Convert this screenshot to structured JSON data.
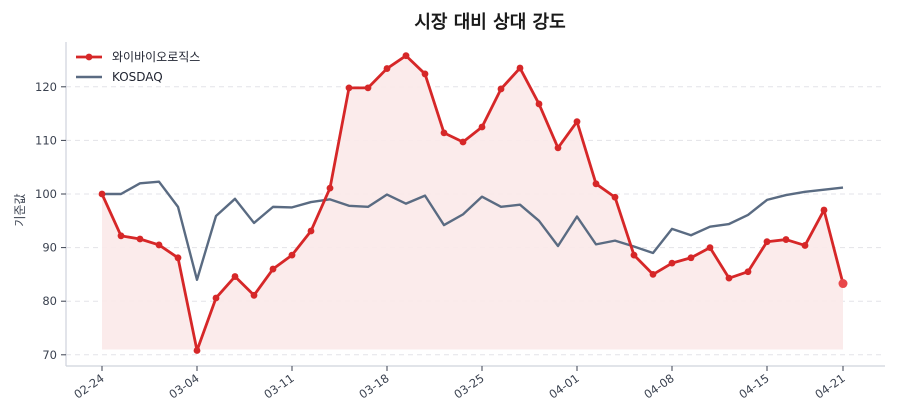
{
  "chart_data": {
    "type": "line",
    "title": "시장 대비 상대 강도",
    "xlabel": "",
    "ylabel": "기준값",
    "ylim": [
      68.5,
      128.5
    ],
    "yticks": [
      70,
      80,
      90,
      100,
      110,
      120
    ],
    "xtick_labels": [
      {
        "index": 0,
        "label": "02-24"
      },
      {
        "index": 5,
        "label": "03-04"
      },
      {
        "index": 10,
        "label": "03-11"
      },
      {
        "index": 15,
        "label": "03-18"
      },
      {
        "index": 20,
        "label": "03-25"
      },
      {
        "index": 25,
        "label": "04-01"
      },
      {
        "index": 30,
        "label": "04-08"
      },
      {
        "index": 35,
        "label": "04-15"
      },
      {
        "index": 39,
        "label": "04-21"
      }
    ],
    "grid": "horizontal dashed",
    "legend_position": "upper left",
    "baseline_fill": 71,
    "series": [
      {
        "name": "와이바이오로직스",
        "color": "#d62728",
        "marker": "circle",
        "fill": "#fbe9e9",
        "values": [
          100.0,
          92.2,
          91.6,
          90.5,
          88.1,
          70.8,
          80.6,
          84.6,
          81.1,
          86.0,
          88.6,
          93.1,
          101.1,
          119.8,
          119.8,
          123.4,
          125.8,
          122.4,
          111.4,
          109.7,
          112.5,
          119.6,
          123.5,
          116.8,
          108.6,
          113.5,
          101.9,
          99.4,
          88.6,
          85.0,
          87.1,
          88.1,
          90.0,
          84.3,
          85.5,
          91.1,
          91.5,
          90.4,
          97.0,
          83.3
        ]
      },
      {
        "name": "KOSDAQ",
        "color": "#5a6b82",
        "marker": "none",
        "values": [
          100.0,
          100.0,
          102.0,
          102.3,
          97.6,
          84.0,
          95.9,
          99.1,
          94.6,
          97.6,
          97.5,
          98.5,
          99.0,
          97.8,
          97.6,
          99.9,
          98.2,
          99.7,
          94.2,
          96.2,
          99.5,
          97.6,
          98.0,
          95.0,
          90.3,
          95.8,
          90.6,
          91.3,
          90.2,
          89.0,
          93.5,
          92.3,
          93.9,
          94.4,
          96.1,
          98.9,
          99.8,
          100.4,
          100.8,
          101.2
        ]
      }
    ]
  }
}
